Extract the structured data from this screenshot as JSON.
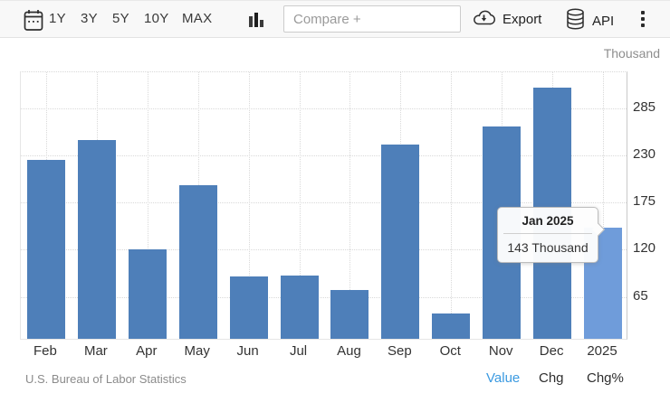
{
  "toolbar": {
    "ranges": [
      "1Y",
      "3Y",
      "5Y",
      "10Y",
      "MAX"
    ],
    "compare_placeholder": "Compare +",
    "export_label": "Export",
    "api_label": "API"
  },
  "chart_data": {
    "type": "bar",
    "title": "",
    "unit_label": "Thousand",
    "categories": [
      "Feb",
      "Mar",
      "Apr",
      "May",
      "Jun",
      "Jul",
      "Aug",
      "Sep",
      "Oct",
      "Nov",
      "Dec",
      "2025"
    ],
    "values": [
      222,
      246,
      118,
      193,
      87,
      88,
      71,
      240,
      44,
      261,
      307,
      143
    ],
    "highlight_index": 11,
    "y_axis": {
      "ticks": [
        65,
        120,
        175,
        230,
        285
      ],
      "min": 14,
      "grid": "dotted"
    },
    "legend": "none",
    "colors": {
      "bar": "#4e7fb9",
      "bar_highlight": "#6f9cda"
    },
    "tooltip": {
      "title": "Jan 2025",
      "value": "143 Thousand"
    }
  },
  "footer": {
    "source": "U.S. Bureau of Labor Statistics",
    "links": [
      {
        "label": "Value",
        "active": true
      },
      {
        "label": "Chg",
        "active": false
      },
      {
        "label": "Chg%",
        "active": false
      }
    ]
  }
}
